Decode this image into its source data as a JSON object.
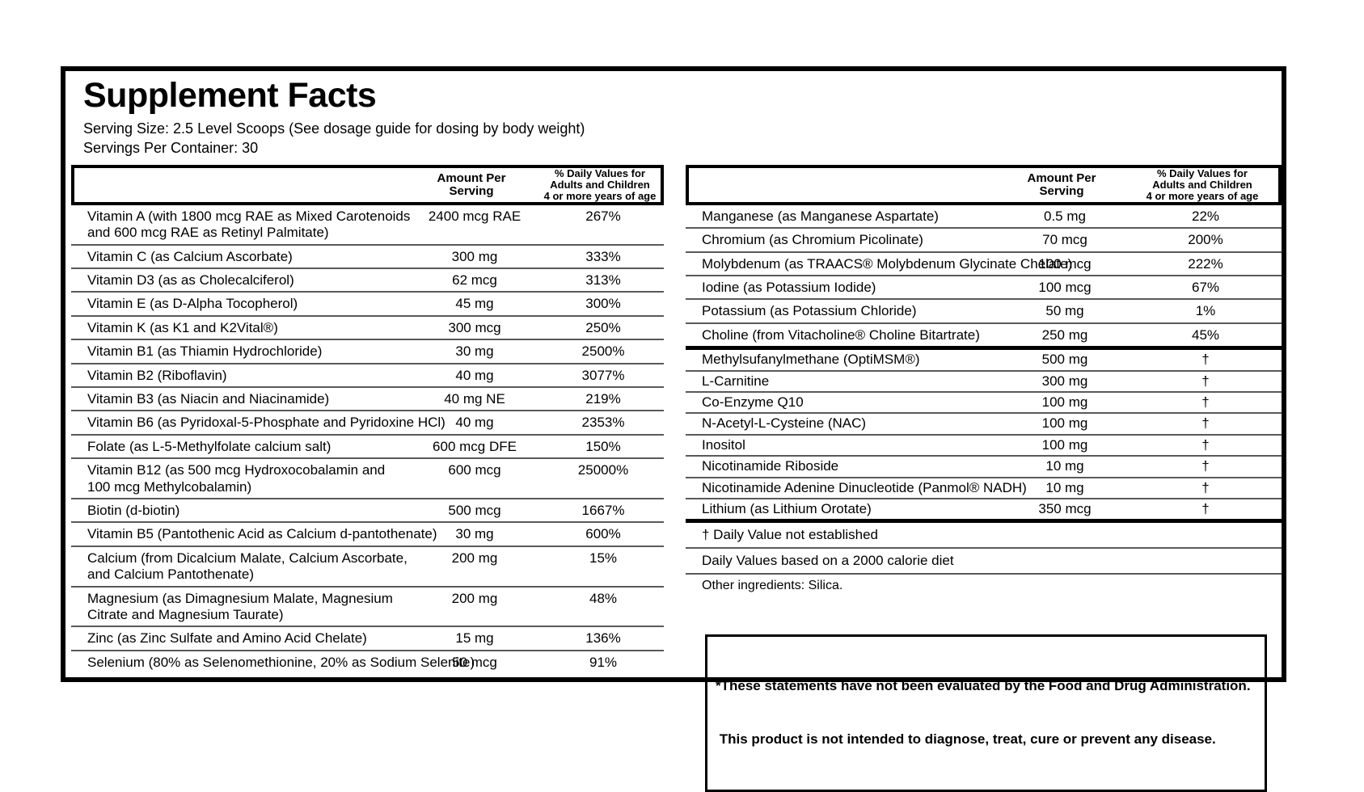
{
  "title": "Supplement Facts",
  "serving_size": "Serving Size: 2.5 Level Scoops (See dosage guide for dosing by body weight)",
  "servings_per_container": "Servings Per Container: 30",
  "column_headers": {
    "amount": "Amount Per\nServing",
    "daily_value": "% Daily Values for\nAdults and Children\n4 or more years of age"
  },
  "left_table": {
    "rows": [
      {
        "name": "Vitamin A (with 1800 mcg RAE as Mixed Carotenoids\nand 600 mcg RAE as Retinyl Palmitate)",
        "amount": "2400 mcg RAE",
        "dv": "267%"
      },
      {
        "name": "Vitamin C (as Calcium Ascorbate)",
        "amount": "300 mg",
        "dv": "333%"
      },
      {
        "name": "Vitamin D3 (as as Cholecalciferol)",
        "amount": "62 mcg",
        "dv": "313%"
      },
      {
        "name": "Vitamin E (as D-Alpha Tocopherol)",
        "amount": "45 mg",
        "dv": "300%"
      },
      {
        "name": "Vitamin K (as K1 and K2Vital®)",
        "amount": "300 mcg",
        "dv": "250%"
      },
      {
        "name": "Vitamin B1 (as Thiamin Hydrochloride)",
        "amount": "30 mg",
        "dv": "2500%"
      },
      {
        "name": "Vitamin B2 (Riboflavin)",
        "amount": "40 mg",
        "dv": "3077%"
      },
      {
        "name": "Vitamin B3 (as Niacin and Niacinamide)",
        "amount": "40 mg NE",
        "dv": "219%"
      },
      {
        "name": "Vitamin B6 (as Pyridoxal-5-Phosphate and Pyridoxine HCl)",
        "amount": "40 mg",
        "dv": "2353%"
      },
      {
        "name": "Folate (as L-5-Methylfolate calcium salt)",
        "amount": "600 mcg DFE",
        "dv": "150%"
      },
      {
        "name": "Vitamin B12 (as 500 mcg Hydroxocobalamin and\n100 mcg Methylcobalamin)",
        "amount": "600 mcg",
        "dv": "25000%"
      },
      {
        "name": "Biotin (d-biotin)",
        "amount": "500 mcg",
        "dv": "1667%"
      },
      {
        "name": "Vitamin B5 (Pantothenic Acid as Calcium d-pantothenate)",
        "amount": "30 mg",
        "dv": "600%"
      },
      {
        "name": "Calcium (from Dicalcium Malate, Calcium Ascorbate,\nand Calcium Pantothenate)",
        "amount": "200 mg",
        "dv": "15%"
      },
      {
        "name": "Magnesium (as Dimagnesium Malate, Magnesium\nCitrate and Magnesium Taurate)",
        "amount": "200 mg",
        "dv": "48%"
      },
      {
        "name": "Zinc (as Zinc Sulfate and Amino Acid Chelate)",
        "amount": "15 mg",
        "dv": "136%"
      },
      {
        "name": "Selenium (80% as Selenomethionine, 20% as Sodium Selenite)",
        "amount": "50 mcg",
        "dv": "91%"
      }
    ]
  },
  "right_table": {
    "mineral_rows": [
      {
        "name": "Manganese (as Manganese Aspartate)",
        "amount": "0.5 mg",
        "dv": "22%"
      },
      {
        "name": "Chromium (as Chromium Picolinate)",
        "amount": "70 mcg",
        "dv": "200%"
      },
      {
        "name": "Molybdenum (as TRAACS® Molybdenum Glycinate Chelate)",
        "amount": "100 mcg",
        "dv": "222%"
      },
      {
        "name": "Iodine (as Potassium Iodide)",
        "amount": "100 mcg",
        "dv": "67%"
      },
      {
        "name": "Potassium (as Potassium Chloride)",
        "amount": "50 mg",
        "dv": "1%"
      },
      {
        "name": "Choline (from Vitacholine® Choline Bitartrate)",
        "amount": "250 mg",
        "dv": "45%"
      }
    ],
    "supplement_rows": [
      {
        "name": "Methylsufanylmethane (OptiMSM®)",
        "amount": "500 mg",
        "dv": "†"
      },
      {
        "name": "L-Carnitine",
        "amount": "300 mg",
        "dv": "†"
      },
      {
        "name": "Co-Enzyme Q10",
        "amount": "100 mg",
        "dv": "†"
      },
      {
        "name": "N-Acetyl-L-Cysteine (NAC)",
        "amount": "100 mg",
        "dv": "†"
      },
      {
        "name": "Inositol",
        "amount": "100 mg",
        "dv": "†"
      },
      {
        "name": "Nicotinamide Riboside",
        "amount": "10 mg",
        "dv": "†"
      },
      {
        "name": "Nicotinamide Adenine Dinucleotide (Panmol® NADH)",
        "amount": "10 mg",
        "dv": "†"
      },
      {
        "name": "Lithium (as Lithium Orotate)",
        "amount": "350 mcg",
        "dv": "†"
      }
    ],
    "footnotes": {
      "dv_not_established": "†  Daily Value not established",
      "calorie_diet": "Daily Values based on a 2000 calorie diet",
      "other_ingredients": "Other ingredients: Silica."
    }
  },
  "disclaimer": {
    "line1": "*These statements have not been evaluated by the Food and Drug Administration.",
    "line2": " This product is not intended to diagnose, treat, cure or prevent any disease."
  },
  "colors": {
    "text": "#000000",
    "background": "#ffffff",
    "separator": "#595959"
  }
}
